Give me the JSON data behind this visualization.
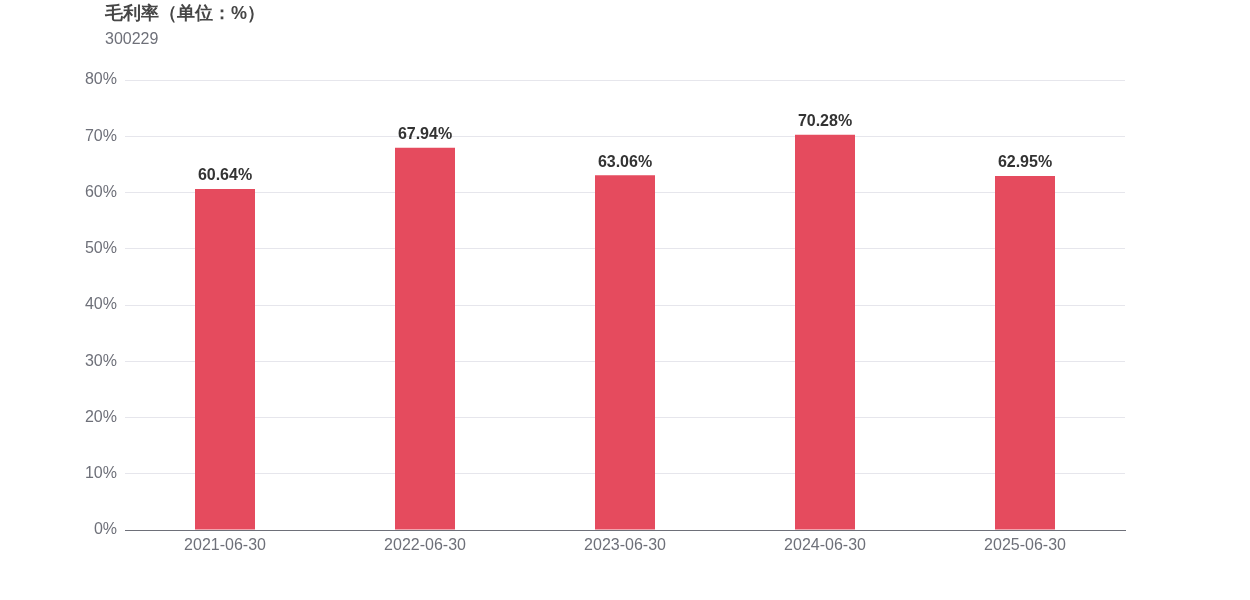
{
  "chart_data": {
    "type": "bar",
    "title": "毛利率（单位：%）",
    "subtitle": "300229",
    "categories": [
      "2021-06-30",
      "2022-06-30",
      "2023-06-30",
      "2024-06-30",
      "2025-06-30"
    ],
    "values": [
      60.64,
      67.94,
      63.06,
      70.28,
      62.95
    ],
    "value_labels": [
      "60.64%",
      "67.94%",
      "63.06%",
      "70.28%",
      "62.95%"
    ],
    "color": "#e54b5e",
    "ylim": [
      0,
      80
    ],
    "yticks": [
      {
        "value": 0,
        "label": "0%"
      },
      {
        "value": 10,
        "label": "10%"
      },
      {
        "value": 20,
        "label": "20%"
      },
      {
        "value": 30,
        "label": "30%"
      },
      {
        "value": 40,
        "label": "40%"
      },
      {
        "value": 50,
        "label": "50%"
      },
      {
        "value": 60,
        "label": "60%"
      },
      {
        "value": 70,
        "label": "70%"
      },
      {
        "value": 80,
        "label": "80%"
      }
    ],
    "grid": "y",
    "legend": false
  }
}
